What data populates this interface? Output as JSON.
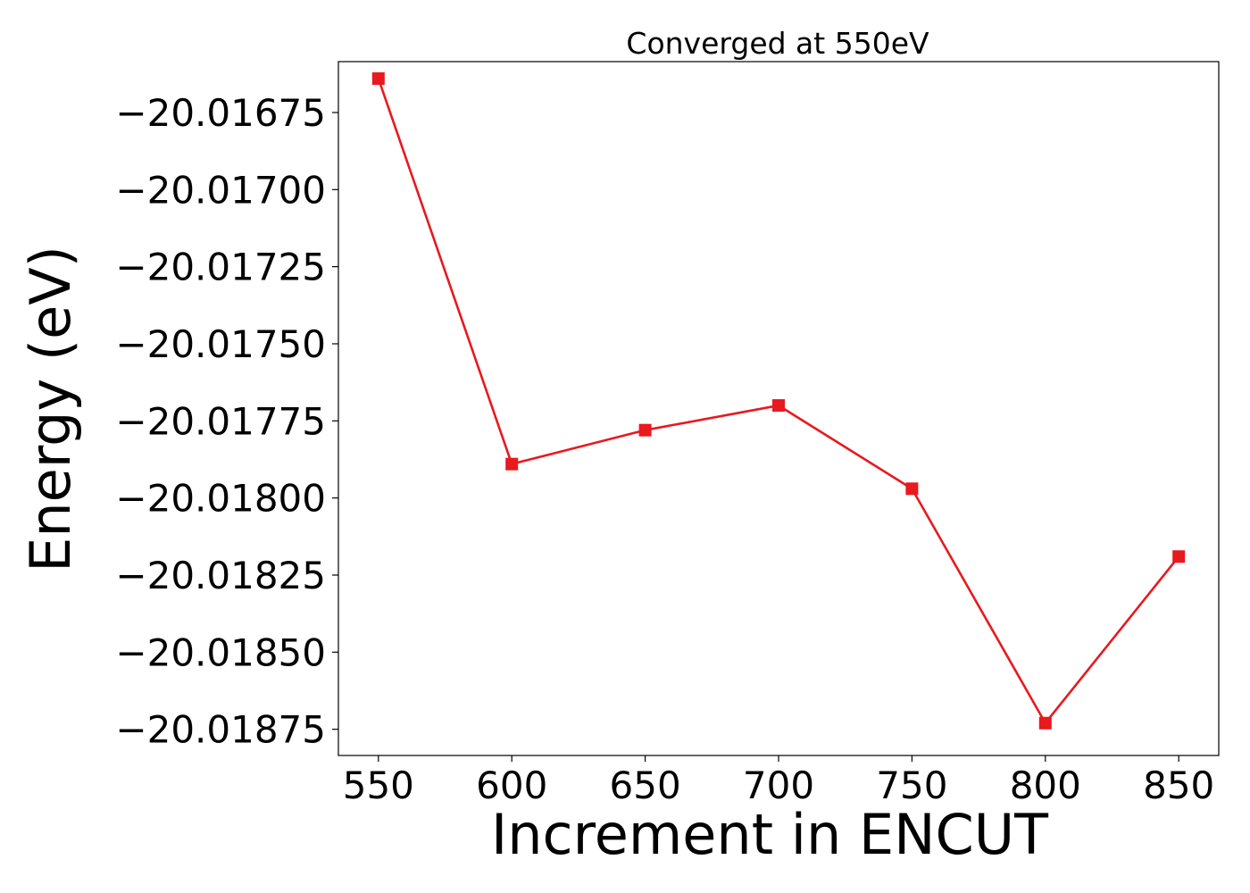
{
  "chart_data": {
    "type": "line",
    "title": "Converged at 550eV",
    "xlabel": "Increment in ENCUT",
    "ylabel": "Energy (eV)",
    "x": [
      550,
      600,
      650,
      700,
      750,
      800,
      850
    ],
    "xticks": [
      550,
      600,
      650,
      700,
      750,
      800,
      850
    ],
    "xtick_labels": [
      "550",
      "600",
      "650",
      "700",
      "750",
      "800",
      "850"
    ],
    "yticks": [
      -20.01675,
      -20.017,
      -20.01725,
      -20.0175,
      -20.01775,
      -20.018,
      -20.01825,
      -20.0185,
      -20.01875
    ],
    "ytick_labels": [
      "−20.01675",
      "−20.01700",
      "−20.01725",
      "−20.01750",
      "−20.01775",
      "−20.01800",
      "−20.01825",
      "−20.01850",
      "−20.01875"
    ],
    "xlim": [
      535,
      865
    ],
    "ylim": [
      -20.018835,
      -20.016585
    ],
    "series": [
      {
        "color": "#e8191f",
        "marker": "square",
        "values": [
          -20.01664,
          -20.01789,
          -20.01778,
          -20.0177,
          -20.01797,
          -20.01873,
          -20.01819
        ]
      }
    ],
    "grid": false,
    "legend": "none"
  }
}
